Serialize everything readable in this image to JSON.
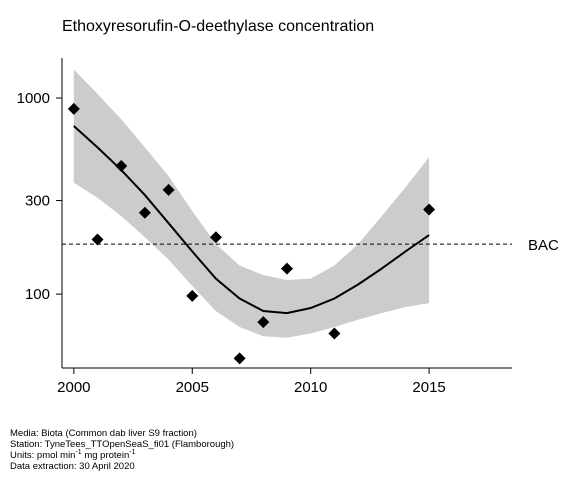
{
  "chart_data": {
    "type": "scatter",
    "title": "Ethoxyresorufin-O-deethylase concentration",
    "y_scale": "log",
    "xlim": [
      1999.5,
      2018.5
    ],
    "ylim": [
      42,
      1600
    ],
    "x_ticks": [
      2000,
      2005,
      2010,
      2015
    ],
    "y_ticks": [
      100,
      300,
      1000
    ],
    "grid": false,
    "points": [
      {
        "x": 2000,
        "y": 880
      },
      {
        "x": 2001,
        "y": 190
      },
      {
        "x": 2002,
        "y": 450
      },
      {
        "x": 2003,
        "y": 260
      },
      {
        "x": 2004,
        "y": 340
      },
      {
        "x": 2005,
        "y": 98
      },
      {
        "x": 2006,
        "y": 195
      },
      {
        "x": 2007,
        "y": 47
      },
      {
        "x": 2008,
        "y": 72
      },
      {
        "x": 2009,
        "y": 135
      },
      {
        "x": 2011,
        "y": 63
      },
      {
        "x": 2015,
        "y": 270
      }
    ],
    "trend": {
      "x": [
        2000,
        2001,
        2002,
        2003,
        2004,
        2005,
        2006,
        2007,
        2008,
        2009,
        2010,
        2011,
        2012,
        2013,
        2014,
        2015
      ],
      "fit": [
        720,
        560,
        430,
        320,
        230,
        165,
        120,
        95,
        82,
        80,
        85,
        95,
        112,
        135,
        165,
        200
      ],
      "lower": [
        370,
        310,
        250,
        195,
        150,
        110,
        82,
        68,
        61,
        60,
        63,
        68,
        74,
        80,
        86,
        90
      ],
      "upper": [
        1400,
        1050,
        780,
        560,
        400,
        265,
        180,
        140,
        125,
        118,
        120,
        140,
        180,
        250,
        350,
        500
      ]
    },
    "reference_line": {
      "label": "BAC",
      "y": 180
    }
  },
  "footer": {
    "media": "Media: Biota (Common dab liver S9 fraction)",
    "station": "Station: TyneTees_TTOpenSeaS_fi01 (Flamborough)",
    "units_prefix": "Units:  pmol min",
    "units_sup1": "-1",
    "units_middle": " mg protein",
    "units_sup2": "-1",
    "extraction": "Data extraction: 30 April 2020"
  }
}
